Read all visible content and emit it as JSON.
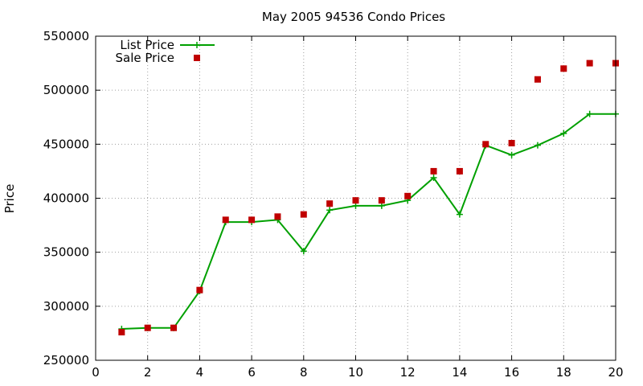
{
  "chart_data": {
    "type": "line",
    "title": "May 2005 94536 Condo Prices",
    "xlabel": "",
    "ylabel": "Price",
    "xlim": [
      0,
      20
    ],
    "ylim": [
      250000,
      550000
    ],
    "x_ticks": [
      0,
      2,
      4,
      6,
      8,
      10,
      12,
      14,
      16,
      18,
      20
    ],
    "y_ticks": [
      250000,
      300000,
      350000,
      400000,
      450000,
      500000,
      550000
    ],
    "grid": true,
    "legend_position": "top-left",
    "series": [
      {
        "name": "List Price",
        "style": "line+plus",
        "color": "#00a000",
        "points": [
          [
            1,
            279000
          ],
          [
            2,
            279900
          ],
          [
            3,
            279900
          ],
          [
            4,
            314000
          ],
          [
            5,
            378000
          ],
          [
            6,
            378000
          ],
          [
            7,
            380000
          ],
          [
            8,
            351000
          ],
          [
            9,
            389000
          ],
          [
            10,
            393000
          ],
          [
            11,
            393000
          ],
          [
            12,
            398000
          ],
          [
            13,
            419000
          ],
          [
            14,
            385000
          ],
          [
            15,
            449000
          ],
          [
            16,
            440000
          ],
          [
            17,
            449000
          ],
          [
            18,
            460000
          ],
          [
            19,
            478000
          ],
          [
            20,
            478000
          ]
        ]
      },
      {
        "name": "Sale Price",
        "style": "square-points",
        "color": "#c00000",
        "points": [
          [
            1,
            276000
          ],
          [
            2,
            280000
          ],
          [
            3,
            280000
          ],
          [
            4,
            315000
          ],
          [
            5,
            380000
          ],
          [
            6,
            380000
          ],
          [
            7,
            383000
          ],
          [
            8,
            385000
          ],
          [
            9,
            395000
          ],
          [
            10,
            398000
          ],
          [
            11,
            398000
          ],
          [
            12,
            402000
          ],
          [
            13,
            425000
          ],
          [
            14,
            425000
          ],
          [
            15,
            450000
          ],
          [
            16,
            451000
          ],
          [
            17,
            510000
          ],
          [
            18,
            520000
          ],
          [
            19,
            525000
          ],
          [
            20,
            525000
          ]
        ]
      }
    ]
  }
}
